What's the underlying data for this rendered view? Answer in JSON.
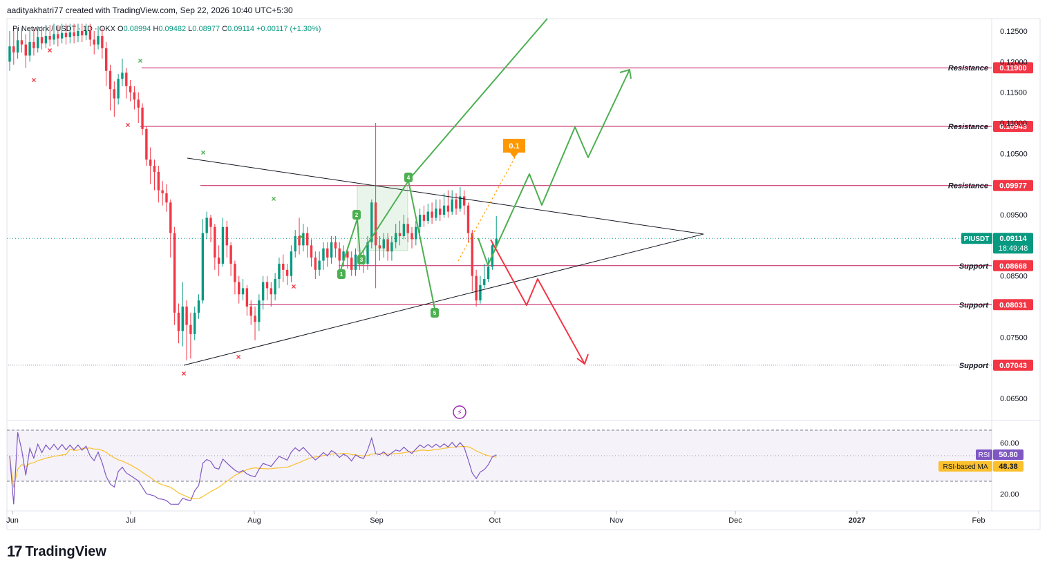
{
  "header": {
    "attribution": "aadityakhatri77 created with TradingView.com, Sep 22, 2026 10:40 UTC+5:30",
    "symbol": "Pi Network / USDT · 1D · OKX",
    "ohlc": {
      "O_label": "O",
      "O": "0.08994",
      "H_label": "H",
      "H": "0.09482",
      "L_label": "L",
      "L": "0.08977",
      "C_label": "C",
      "C": "0.09114",
      "change": "+0.00117 (+1.30%)"
    }
  },
  "brand": {
    "name": "TradingView",
    "logo_text": "17"
  },
  "colors": {
    "up": "#089981",
    "down": "#f23645",
    "level": "#c2185b",
    "green_path": "#4caf50",
    "red_path": "#f23645",
    "rsi": "#7e57c2",
    "rsi_ma": "#fbc02d",
    "orange": "#ff9800"
  },
  "chart_data": {
    "type": "candlestick",
    "timeframe": "1D",
    "price_axis": {
      "min": 0.06,
      "max": 0.128,
      "ticks": [
        "0.12500",
        "0.12000",
        "0.11500",
        "0.11000",
        "0.10500",
        "0.09500",
        "0.08500",
        "0.07500",
        "0.06500"
      ]
    },
    "x_axis": {
      "ticks": [
        "Jun",
        "Jul",
        "Aug",
        "Sep",
        "Oct",
        "Nov",
        "Dec",
        "2027",
        "Feb"
      ]
    },
    "current_price": {
      "symbol": "PIUSDT",
      "value": "0.09114",
      "countdown": "18:49:48"
    },
    "levels": [
      {
        "label": "Resistance",
        "value": "0.11900"
      },
      {
        "label": "Resistance",
        "value": "0.10943"
      },
      {
        "label": "Resistance",
        "value": "0.09977"
      },
      {
        "label": "Support",
        "value": "0.08668"
      },
      {
        "label": "Support",
        "value": "0.08031"
      },
      {
        "label": "Support",
        "value": "0.07043"
      }
    ],
    "annotation_badge": "0.1",
    "wave_labels": [
      "1",
      "2",
      "3",
      "4",
      "5"
    ],
    "rsi": {
      "ticks": [
        "60.00",
        "20.00"
      ],
      "labels": [
        {
          "name": "RSI",
          "value": "50.80"
        },
        {
          "name": "RSI-based MA",
          "value": "48.38"
        }
      ]
    },
    "candles_open_close_high_low": [
      [
        0.12,
        0.1225,
        0.125,
        0.1185
      ],
      [
        0.1225,
        0.1215,
        0.125,
        0.1195
      ],
      [
        0.1215,
        0.1235,
        0.1255,
        0.1205
      ],
      [
        0.1235,
        0.1228,
        0.1255,
        0.1215
      ],
      [
        0.1228,
        0.121,
        0.1245,
        0.119
      ],
      [
        0.121,
        0.1232,
        0.125,
        0.12
      ],
      [
        0.1232,
        0.1222,
        0.1255,
        0.121
      ],
      [
        0.1222,
        0.124,
        0.1258,
        0.1215
      ],
      [
        0.124,
        0.123,
        0.1258,
        0.122
      ],
      [
        0.123,
        0.1242,
        0.126,
        0.1222
      ],
      [
        0.1242,
        0.1236,
        0.126,
        0.1225
      ],
      [
        0.1236,
        0.1245,
        0.1262,
        0.1228
      ],
      [
        0.1245,
        0.1238,
        0.126,
        0.1225
      ],
      [
        0.1238,
        0.1247,
        0.1262,
        0.123
      ],
      [
        0.1247,
        0.124,
        0.1262,
        0.1228
      ],
      [
        0.124,
        0.1248,
        0.1262,
        0.123
      ],
      [
        0.1248,
        0.1242,
        0.1262,
        0.123
      ],
      [
        0.1242,
        0.125,
        0.1262,
        0.1232
      ],
      [
        0.125,
        0.1243,
        0.1262,
        0.1232
      ],
      [
        0.1243,
        0.125,
        0.1262,
        0.1235
      ],
      [
        0.125,
        0.1236,
        0.1262,
        0.1225
      ],
      [
        0.1236,
        0.1228,
        0.125,
        0.1212
      ],
      [
        0.1228,
        0.1242,
        0.1258,
        0.122
      ],
      [
        0.1242,
        0.1222,
        0.1255,
        0.1205
      ],
      [
        0.1222,
        0.1185,
        0.1232,
        0.116
      ],
      [
        0.1185,
        0.1155,
        0.1195,
        0.112
      ],
      [
        0.1155,
        0.114,
        0.1168,
        0.111
      ],
      [
        0.114,
        0.1172,
        0.118,
        0.113
      ],
      [
        0.1172,
        0.1182,
        0.1205,
        0.116
      ],
      [
        0.1182,
        0.116,
        0.119,
        0.114
      ],
      [
        0.116,
        0.115,
        0.117,
        0.1135
      ],
      [
        0.115,
        0.1138,
        0.116,
        0.1122
      ],
      [
        0.1138,
        0.1125,
        0.115,
        0.11
      ],
      [
        0.1125,
        0.109,
        0.1132,
        0.108
      ],
      [
        0.109,
        0.104,
        0.1095,
        0.103
      ],
      [
        0.104,
        0.103,
        0.106,
        0.1
      ],
      [
        0.103,
        0.102,
        0.104,
        0.099
      ],
      [
        0.102,
        0.099,
        0.103,
        0.097
      ],
      [
        0.099,
        0.0985,
        0.1005,
        0.0965
      ],
      [
        0.0985,
        0.097,
        0.1,
        0.0955
      ],
      [
        0.097,
        0.092,
        0.0975,
        0.088
      ],
      [
        0.092,
        0.079,
        0.093,
        0.077
      ],
      [
        0.079,
        0.076,
        0.0805,
        0.074
      ],
      [
        0.076,
        0.08,
        0.084,
        0.0735
      ],
      [
        0.08,
        0.077,
        0.081,
        0.0712
      ],
      [
        0.077,
        0.0755,
        0.079,
        0.0715
      ],
      [
        0.0755,
        0.079,
        0.08,
        0.0745
      ],
      [
        0.079,
        0.081,
        0.082,
        0.078
      ],
      [
        0.081,
        0.092,
        0.0943,
        0.0805
      ],
      [
        0.092,
        0.0945,
        0.0955,
        0.091
      ],
      [
        0.0945,
        0.093,
        0.095,
        0.0905
      ],
      [
        0.093,
        0.088,
        0.0935,
        0.086
      ],
      [
        0.088,
        0.087,
        0.09,
        0.085
      ],
      [
        0.087,
        0.093,
        0.0945,
        0.0865
      ],
      [
        0.093,
        0.09,
        0.094,
        0.088
      ],
      [
        0.09,
        0.087,
        0.0905,
        0.085
      ],
      [
        0.087,
        0.084,
        0.0875,
        0.082
      ],
      [
        0.084,
        0.082,
        0.085,
        0.0805
      ],
      [
        0.082,
        0.083,
        0.0845,
        0.081
      ],
      [
        0.083,
        0.08,
        0.0835,
        0.0785
      ],
      [
        0.08,
        0.0785,
        0.081,
        0.077
      ],
      [
        0.0785,
        0.0775,
        0.08,
        0.0745
      ],
      [
        0.0775,
        0.081,
        0.082,
        0.076
      ],
      [
        0.081,
        0.084,
        0.085,
        0.0795
      ],
      [
        0.084,
        0.083,
        0.085,
        0.081
      ],
      [
        0.083,
        0.082,
        0.084,
        0.08
      ],
      [
        0.082,
        0.0845,
        0.0855,
        0.081
      ],
      [
        0.0845,
        0.087,
        0.088,
        0.083
      ],
      [
        0.087,
        0.086,
        0.0885,
        0.084
      ],
      [
        0.086,
        0.085,
        0.087,
        0.0835
      ],
      [
        0.085,
        0.089,
        0.09,
        0.084
      ],
      [
        0.089,
        0.0915,
        0.0925,
        0.088
      ],
      [
        0.0915,
        0.09,
        0.0945,
        0.0885
      ],
      [
        0.09,
        0.092,
        0.0935,
        0.089
      ],
      [
        0.092,
        0.09,
        0.093,
        0.088
      ],
      [
        0.09,
        0.088,
        0.091,
        0.0865
      ],
      [
        0.088,
        0.086,
        0.089,
        0.0845
      ],
      [
        0.086,
        0.0875,
        0.089,
        0.085
      ],
      [
        0.0875,
        0.0895,
        0.0905,
        0.086
      ],
      [
        0.0895,
        0.088,
        0.0905,
        0.0865
      ],
      [
        0.088,
        0.0905,
        0.0915,
        0.087
      ],
      [
        0.0905,
        0.0895,
        0.0915,
        0.088
      ],
      [
        0.0895,
        0.0875,
        0.0905,
        0.086
      ],
      [
        0.0875,
        0.089,
        0.09,
        0.0865
      ],
      [
        0.089,
        0.088,
        0.0898,
        0.0862
      ],
      [
        0.088,
        0.086,
        0.089,
        0.085
      ],
      [
        0.086,
        0.0885,
        0.0895,
        0.085
      ],
      [
        0.0885,
        0.0875,
        0.09,
        0.086
      ],
      [
        0.0875,
        0.087,
        0.089,
        0.0855
      ],
      [
        0.087,
        0.0905,
        0.0915,
        0.086
      ],
      [
        0.0905,
        0.097,
        0.0975,
        0.0895
      ],
      [
        0.097,
        0.09,
        0.11,
        0.083
      ],
      [
        0.09,
        0.0895,
        0.0915,
        0.0875
      ],
      [
        0.0895,
        0.091,
        0.092,
        0.088
      ],
      [
        0.091,
        0.089,
        0.092,
        0.0875
      ],
      [
        0.089,
        0.0905,
        0.0915,
        0.0875
      ],
      [
        0.0905,
        0.092,
        0.0935,
        0.0895
      ],
      [
        0.092,
        0.0915,
        0.094,
        0.09
      ],
      [
        0.0915,
        0.0935,
        0.095,
        0.091
      ],
      [
        0.0935,
        0.092,
        0.0945,
        0.0905
      ],
      [
        0.092,
        0.091,
        0.093,
        0.0895
      ],
      [
        0.091,
        0.093,
        0.094,
        0.09
      ],
      [
        0.093,
        0.095,
        0.096,
        0.092
      ],
      [
        0.095,
        0.094,
        0.0965,
        0.093
      ],
      [
        0.094,
        0.0955,
        0.0968,
        0.0935
      ],
      [
        0.0955,
        0.0945,
        0.097,
        0.0935
      ],
      [
        0.0945,
        0.096,
        0.0975,
        0.094
      ],
      [
        0.096,
        0.095,
        0.0975,
        0.094
      ],
      [
        0.095,
        0.0965,
        0.0985,
        0.0945
      ],
      [
        0.0965,
        0.0955,
        0.099,
        0.0945
      ],
      [
        0.0955,
        0.0975,
        0.099,
        0.095
      ],
      [
        0.0975,
        0.096,
        0.0985,
        0.095
      ],
      [
        0.096,
        0.098,
        0.0995,
        0.0955
      ],
      [
        0.098,
        0.0965,
        0.099,
        0.095
      ],
      [
        0.0965,
        0.092,
        0.097,
        0.0905
      ],
      [
        0.092,
        0.085,
        0.0925,
        0.0825
      ],
      [
        0.085,
        0.081,
        0.086,
        0.08
      ],
      [
        0.081,
        0.0835,
        0.085,
        0.0805
      ],
      [
        0.0835,
        0.0845,
        0.087,
        0.083
      ],
      [
        0.0845,
        0.0865,
        0.088,
        0.084
      ],
      [
        0.0865,
        0.09,
        0.0905,
        0.086
      ],
      [
        0.0899,
        0.0911,
        0.0948,
        0.0898
      ]
    ]
  }
}
